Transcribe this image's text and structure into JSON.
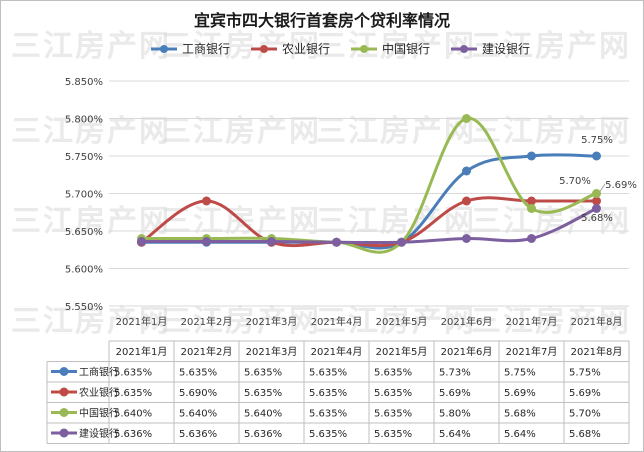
{
  "chart_data": {
    "type": "line",
    "title": "宜宾市四大银行首套房个贷利率情况",
    "categories": [
      "2021年1月",
      "2021年2月",
      "2021年3月",
      "2021年4月",
      "2021年5月",
      "2021年6月",
      "2021年7月",
      "2021年8月"
    ],
    "ylim": [
      5.55,
      5.85
    ],
    "yticks": [
      "5.550%",
      "5.600%",
      "5.650%",
      "5.700%",
      "5.750%",
      "5.800%",
      "5.850%"
    ],
    "grid": true,
    "legend_position": "top",
    "series": [
      {
        "name": "工商银行",
        "color": "#4a7ebb",
        "values": [
          5.635,
          5.635,
          5.635,
          5.635,
          5.635,
          5.73,
          5.75,
          5.75
        ]
      },
      {
        "name": "农业银行",
        "color": "#be4b48",
        "values": [
          5.635,
          5.69,
          5.635,
          5.635,
          5.635,
          5.69,
          5.69,
          5.69
        ]
      },
      {
        "name": "中国银行",
        "color": "#98b954",
        "values": [
          5.64,
          5.64,
          5.64,
          5.635,
          5.635,
          5.8,
          5.68,
          5.7
        ]
      },
      {
        "name": "建设银行",
        "color": "#7d5fa0",
        "values": [
          5.636,
          5.636,
          5.636,
          5.635,
          5.635,
          5.64,
          5.64,
          5.68
        ]
      }
    ],
    "data_labels": [
      {
        "series": 0,
        "index": 7,
        "text": "5.75%"
      },
      {
        "series": 2,
        "index": 7,
        "text": "5.70%"
      },
      {
        "series": 1,
        "index": 7,
        "text": "5.69%"
      },
      {
        "series": 3,
        "index": 7,
        "text": "5.68%"
      }
    ],
    "table": {
      "header": [
        "2021年1月",
        "2021年2月",
        "2021年3月",
        "2021年4月",
        "2021年5月",
        "2021年6月",
        "2021年7月",
        "2021年8月"
      ],
      "rows": [
        {
          "name": "工商银行",
          "cells": [
            "5.635%",
            "5.635%",
            "5.635%",
            "5.635%",
            "5.635%",
            "5.73%",
            "5.75%",
            "5.75%"
          ]
        },
        {
          "name": "农业银行",
          "cells": [
            "5.635%",
            "5.690%",
            "5.635%",
            "5.635%",
            "5.635%",
            "5.69%",
            "5.69%",
            "5.69%"
          ]
        },
        {
          "name": "中国银行",
          "cells": [
            "5.640%",
            "5.640%",
            "5.640%",
            "5.635%",
            "5.635%",
            "5.80%",
            "5.68%",
            "5.70%"
          ]
        },
        {
          "name": "建设银行",
          "cells": [
            "5.636%",
            "5.636%",
            "5.636%",
            "5.635%",
            "5.635%",
            "5.64%",
            "5.64%",
            "5.68%"
          ]
        }
      ]
    }
  },
  "watermark": "三江房产网"
}
